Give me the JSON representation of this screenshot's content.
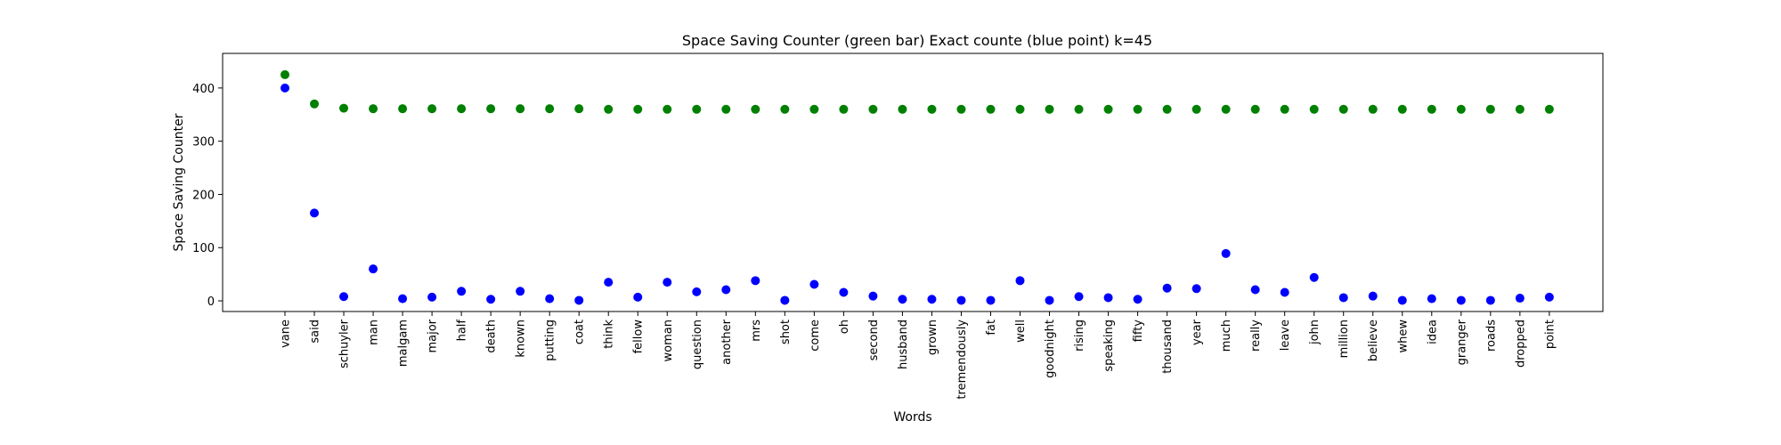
{
  "chart_data": {
    "type": "scatter",
    "title": "Space Saving Counter (green bar)  Exact counte (blue point) k=45",
    "xlabel": "Words",
    "ylabel": "Space Saving Counter",
    "ylim": [
      -20,
      465
    ],
    "yticks": [
      0,
      100,
      200,
      300,
      400
    ],
    "grid": false,
    "categories": [
      "vane",
      "said",
      "schuyler",
      "man",
      "malgam",
      "major",
      "half",
      "death",
      "known",
      "putting",
      "coat",
      "think",
      "fellow",
      "woman",
      "question",
      "another",
      "mrs",
      "shot",
      "come",
      "oh",
      "second",
      "husband",
      "grown",
      "tremendously",
      "fat",
      "well",
      "goodnight",
      "rising",
      "speaking",
      "fifty",
      "thousand",
      "year",
      "much",
      "really",
      "leave",
      "john",
      "million",
      "believe",
      "whew",
      "idea",
      "granger",
      "roads",
      "dropped",
      "point"
    ],
    "series": [
      {
        "color": "#008000",
        "values": [
          425,
          370,
          362,
          361,
          361,
          361,
          361,
          361,
          361,
          361,
          361,
          360,
          360,
          360,
          360,
          360,
          360,
          360,
          360,
          360,
          360,
          360,
          360,
          360,
          360,
          360,
          360,
          360,
          360,
          360,
          360,
          360,
          360,
          360,
          360,
          360,
          360,
          360,
          360,
          360,
          360,
          360,
          360,
          360
        ]
      },
      {
        "color": "#0000ff",
        "values": [
          400,
          165,
          8,
          60,
          4,
          7,
          18,
          3,
          18,
          4,
          1,
          35,
          7,
          35,
          17,
          21,
          38,
          1,
          31,
          16,
          9,
          3,
          3,
          1,
          1,
          38,
          1,
          8,
          6,
          3,
          24,
          23,
          89,
          21,
          16,
          44,
          6,
          9,
          1,
          4,
          1,
          1,
          5,
          7
        ]
      }
    ]
  }
}
